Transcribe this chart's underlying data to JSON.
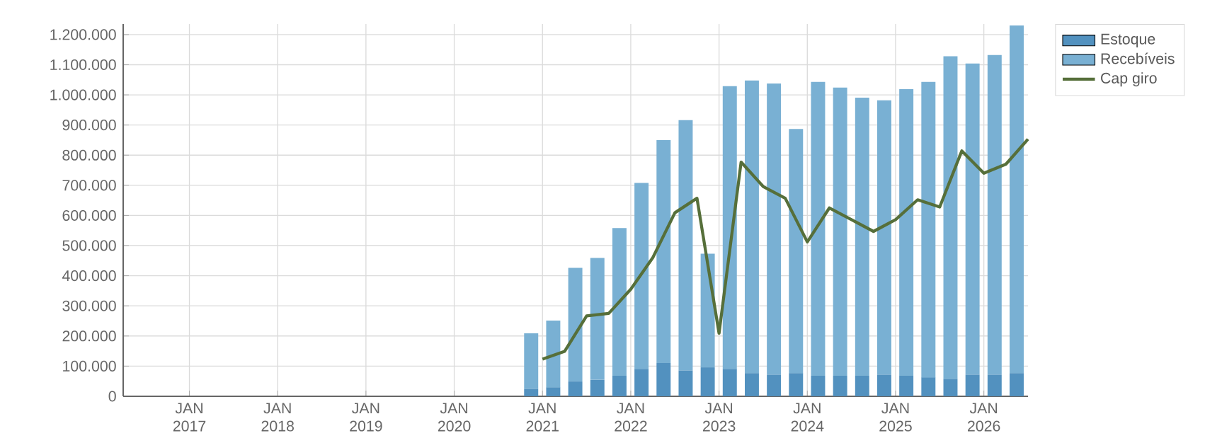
{
  "chart_data": {
    "type": "bar",
    "stacked": true,
    "grid": true,
    "legend": "top right",
    "xlim": [
      "2016-04",
      "2026-07"
    ],
    "xticks": [
      {
        "value": "2017-01",
        "label": "JAN 2017"
      },
      {
        "value": "2018-01",
        "label": "JAN 2018"
      },
      {
        "value": "2019-01",
        "label": "JAN 2019"
      },
      {
        "value": "2020-01",
        "label": "JAN 2020"
      },
      {
        "value": "2021-01",
        "label": "JAN 2021"
      },
      {
        "value": "2022-01",
        "label": "JAN 2022"
      },
      {
        "value": "2023-01",
        "label": "JAN 2023"
      },
      {
        "value": "2024-01",
        "label": "JAN 2024"
      },
      {
        "value": "2025-01",
        "label": "JAN 2025"
      },
      {
        "value": "2026-01",
        "label": "JAN 2026"
      }
    ],
    "ylim": [
      0,
      1235000
    ],
    "yticks": [
      0,
      {
        "value": 100000,
        "label": "100.000"
      },
      {
        "value": 200000,
        "label": "200.000"
      },
      {
        "value": 300000,
        "label": "300.000"
      },
      {
        "value": 400000,
        "label": "400.000"
      },
      {
        "value": 500000,
        "label": "500.000"
      },
      {
        "value": 600000,
        "label": "600.000"
      },
      {
        "value": 700000,
        "label": "700.000"
      },
      {
        "value": 800000,
        "label": "800.000"
      },
      {
        "value": 900000,
        "label": "900.000"
      },
      {
        "value": 1000000,
        "label": "1.000.000"
      },
      {
        "value": 1100000,
        "label": "1.100.000"
      },
      {
        "value": 1200000,
        "label": "1.200.000"
      }
    ],
    "series": [
      {
        "name": "Estoque",
        "color": "#5291bf",
        "x": [
          "2020-11-15",
          "2021-02-15",
          "2021-05-15",
          "2021-08-15",
          "2021-11-15",
          "2022-02-15",
          "2022-05-15",
          "2022-08-15",
          "2022-11-15",
          "2023-02-15",
          "2023-05-15",
          "2023-08-15",
          "2023-11-15",
          "2024-02-15",
          "2024-05-15",
          "2024-08-15",
          "2024-11-15",
          "2025-02-15",
          "2025-05-15",
          "2025-08-15",
          "2025-11-15",
          "2026-02-15",
          "2026-05-15"
        ],
        "values": [
          25000,
          30000,
          49000,
          55000,
          68000,
          91000,
          110000,
          86000,
          96000,
          91000,
          77000,
          72000,
          77000,
          68000,
          68000,
          68000,
          72000,
          68000,
          63000,
          58000,
          72000,
          72000,
          77000
        ]
      },
      {
        "name": "Recebíveis",
        "color": "#79b0d3",
        "x": [
          "2020-11-15",
          "2021-02-15",
          "2021-05-15",
          "2021-08-15",
          "2021-11-15",
          "2022-02-15",
          "2022-05-15",
          "2022-08-15",
          "2022-11-15",
          "2023-02-15",
          "2023-05-15",
          "2023-08-15",
          "2023-11-15",
          "2024-02-15",
          "2024-05-15",
          "2024-08-15",
          "2024-11-15",
          "2025-02-15",
          "2025-05-15",
          "2025-08-15",
          "2025-11-15",
          "2026-02-15",
          "2026-05-15"
        ],
        "values": [
          184000,
          221000,
          377000,
          404000,
          490000,
          617000,
          740000,
          830000,
          377000,
          938000,
          971000,
          966000,
          810000,
          975000,
          956000,
          923000,
          910000,
          951000,
          980000,
          1070000,
          1032000,
          1060000,
          1153000
        ]
      },
      {
        "name": "Cap giro",
        "type": "line",
        "color": "#566f3a",
        "line_style": "solid",
        "marker": "none",
        "x": [
          "2021-01",
          "2021-04",
          "2021-07",
          "2021-10",
          "2022-01",
          "2022-04",
          "2022-07",
          "2022-10",
          "2023-01",
          "2023-04",
          "2023-07",
          "2023-10",
          "2024-01",
          "2024-04",
          "2024-07",
          "2024-10",
          "2025-01",
          "2025-04",
          "2025-07",
          "2025-10",
          "2026-01",
          "2026-04",
          "2026-07"
        ],
        "values": [
          123000,
          149000,
          267000,
          275000,
          355000,
          460000,
          609000,
          657000,
          209000,
          777000,
          696000,
          657000,
          512000,
          625000,
          586000,
          547000,
          586000,
          652000,
          628000,
          814000,
          740000,
          770000,
          853000
        ]
      }
    ]
  }
}
